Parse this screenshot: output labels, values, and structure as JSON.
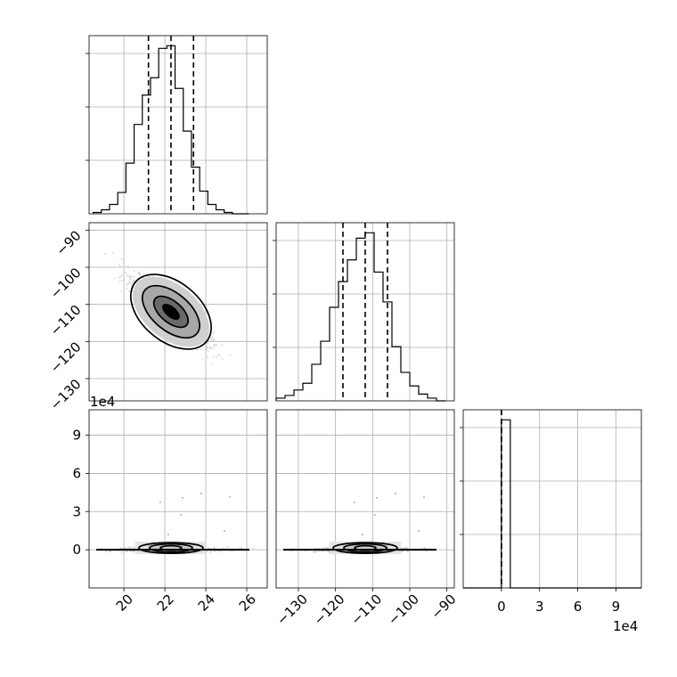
{
  "figure": {
    "x_offset_label": "1e4",
    "y_offset_label": "1e4"
  },
  "chart_data": {
    "type": "scatter",
    "title": "",
    "parameters": [
      {
        "name": "",
        "range": [
          18.3,
          27.0
        ],
        "ticks": [
          20,
          22,
          24,
          26
        ],
        "median": 22.3,
        "q16": 21.2,
        "q84": 23.4
      },
      {
        "name": "",
        "range": [
          -136.0,
          -88.0
        ],
        "ticks": [
          -130,
          -120,
          -110,
          -100,
          -90
        ],
        "median": -112.0,
        "q16": -118.0,
        "q84": -106.0
      },
      {
        "name": "",
        "range": [
          -3.0,
          11.0
        ],
        "ticks": [
          0,
          3,
          6,
          9
        ],
        "median": 0.0,
        "q16": 0.0,
        "q84": 0.0,
        "scale_label": "1e4"
      }
    ],
    "histograms": [
      {
        "param": 0,
        "bin_edges": [
          18.5,
          18.9,
          19.3,
          19.7,
          20.1,
          20.5,
          20.9,
          21.3,
          21.7,
          22.1,
          22.5,
          22.9,
          23.3,
          23.7,
          24.1,
          24.5,
          24.9,
          25.3,
          25.7,
          26.1
        ],
        "counts": [
          1,
          3,
          7,
          16,
          38,
          67,
          89,
          102,
          124,
          126,
          94,
          62,
          35,
          17,
          7,
          3,
          1,
          0,
          0
        ]
      },
      {
        "param": 1,
        "bin_edges": [
          -136,
          -133.6,
          -131.2,
          -128.8,
          -126.4,
          -124,
          -121.6,
          -119.2,
          -116.8,
          -114.4,
          -112,
          -109.6,
          -107.2,
          -104.8,
          -102.4,
          -100,
          -97.6,
          -95.2,
          -92.8,
          -90.4
        ],
        "counts": [
          2,
          4,
          8,
          13,
          27,
          44,
          69,
          88,
          104,
          120,
          124,
          95,
          73,
          40,
          21,
          11,
          5,
          2,
          0
        ]
      },
      {
        "param": 2,
        "bin_edges": [
          -3,
          0,
          0.7,
          11
        ],
        "counts": [
          0,
          110,
          0
        ]
      }
    ],
    "scatter_panels": [
      {
        "x_param": 0,
        "y_param": 1,
        "center": [
          22.3,
          -112.0
        ],
        "note": "negatively correlated cloud"
      },
      {
        "x_param": 0,
        "y_param": 2,
        "center": [
          22.3,
          0.0
        ]
      },
      {
        "x_param": 1,
        "y_param": 2,
        "center": [
          -112.0,
          0.0
        ]
      }
    ],
    "grid": true
  }
}
